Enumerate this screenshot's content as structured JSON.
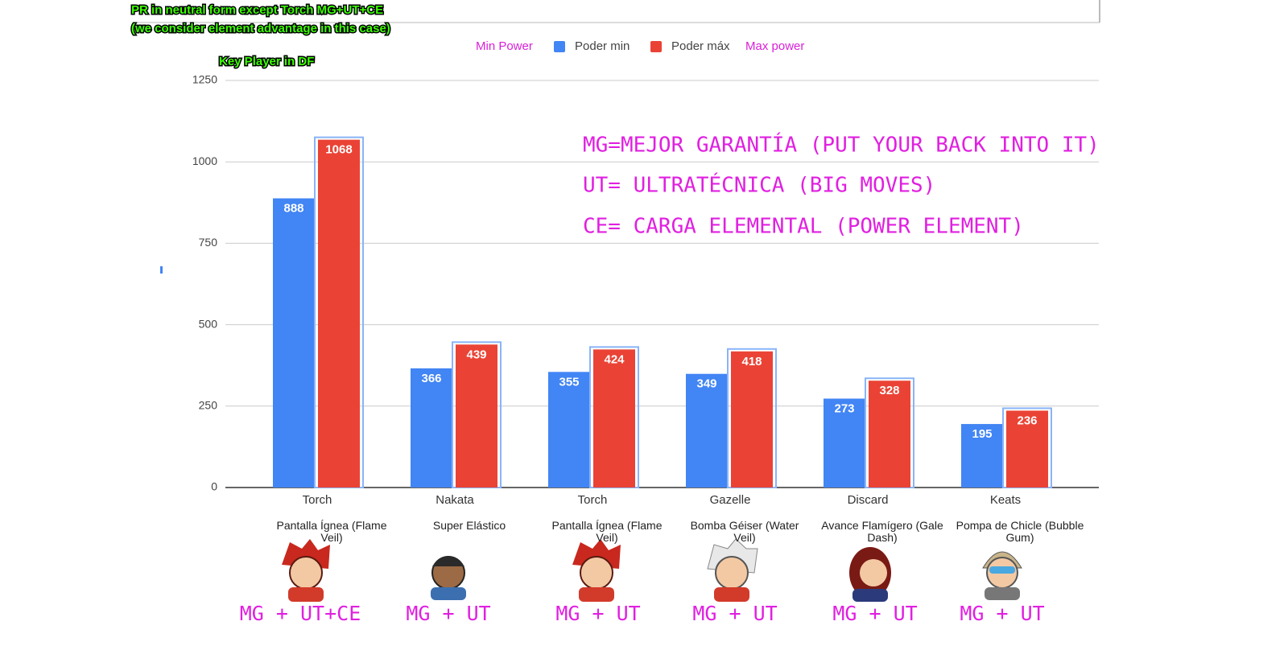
{
  "chart_data": {
    "type": "bar",
    "notes": [
      "PR in neutral form except Torch MG+UT+CE",
      "(we consider element advantage in this case)"
    ],
    "key_note": "Key Player in DF",
    "legend_annotations": [
      "Min Power",
      "Max power"
    ],
    "annotations": [
      "MG=MEJOR GARANTÍA (PUT YOUR BACK INTO IT)",
      "UT= ULTRATÉCNICA (BIG MOVES)",
      "CE= CARGA ELEMENTAL (POWER ELEMENT)"
    ],
    "categories": [
      "Torch",
      "Nakata",
      "Torch",
      "Gazelle",
      "Discard",
      "Keats"
    ],
    "subcategories": [
      "Pantalla Ígnea (Flame Veil)",
      "Super Elástico",
      "Pantalla Ígnea (Flame Veil)",
      "Bomba Géiser (Water Veil)",
      "Avance Flamígero (Gale Dash)",
      "Pompa de Chicle (Bubble Gum)"
    ],
    "boost_labels": [
      "MG + UT+CE",
      "MG + UT",
      "MG + UT",
      "MG + UT",
      "MG + UT",
      "MG + UT"
    ],
    "series": [
      {
        "name": "Poder min",
        "color": "#4285f4",
        "values": [
          888,
          366,
          355,
          349,
          273,
          195
        ]
      },
      {
        "name": "Poder máx",
        "color": "#ea4335",
        "values": [
          1068,
          439,
          424,
          418,
          328,
          236
        ]
      }
    ],
    "ylim": [
      0,
      1250
    ],
    "yticks": [
      0,
      250,
      500,
      750,
      1000,
      1250
    ],
    "grid": true
  }
}
